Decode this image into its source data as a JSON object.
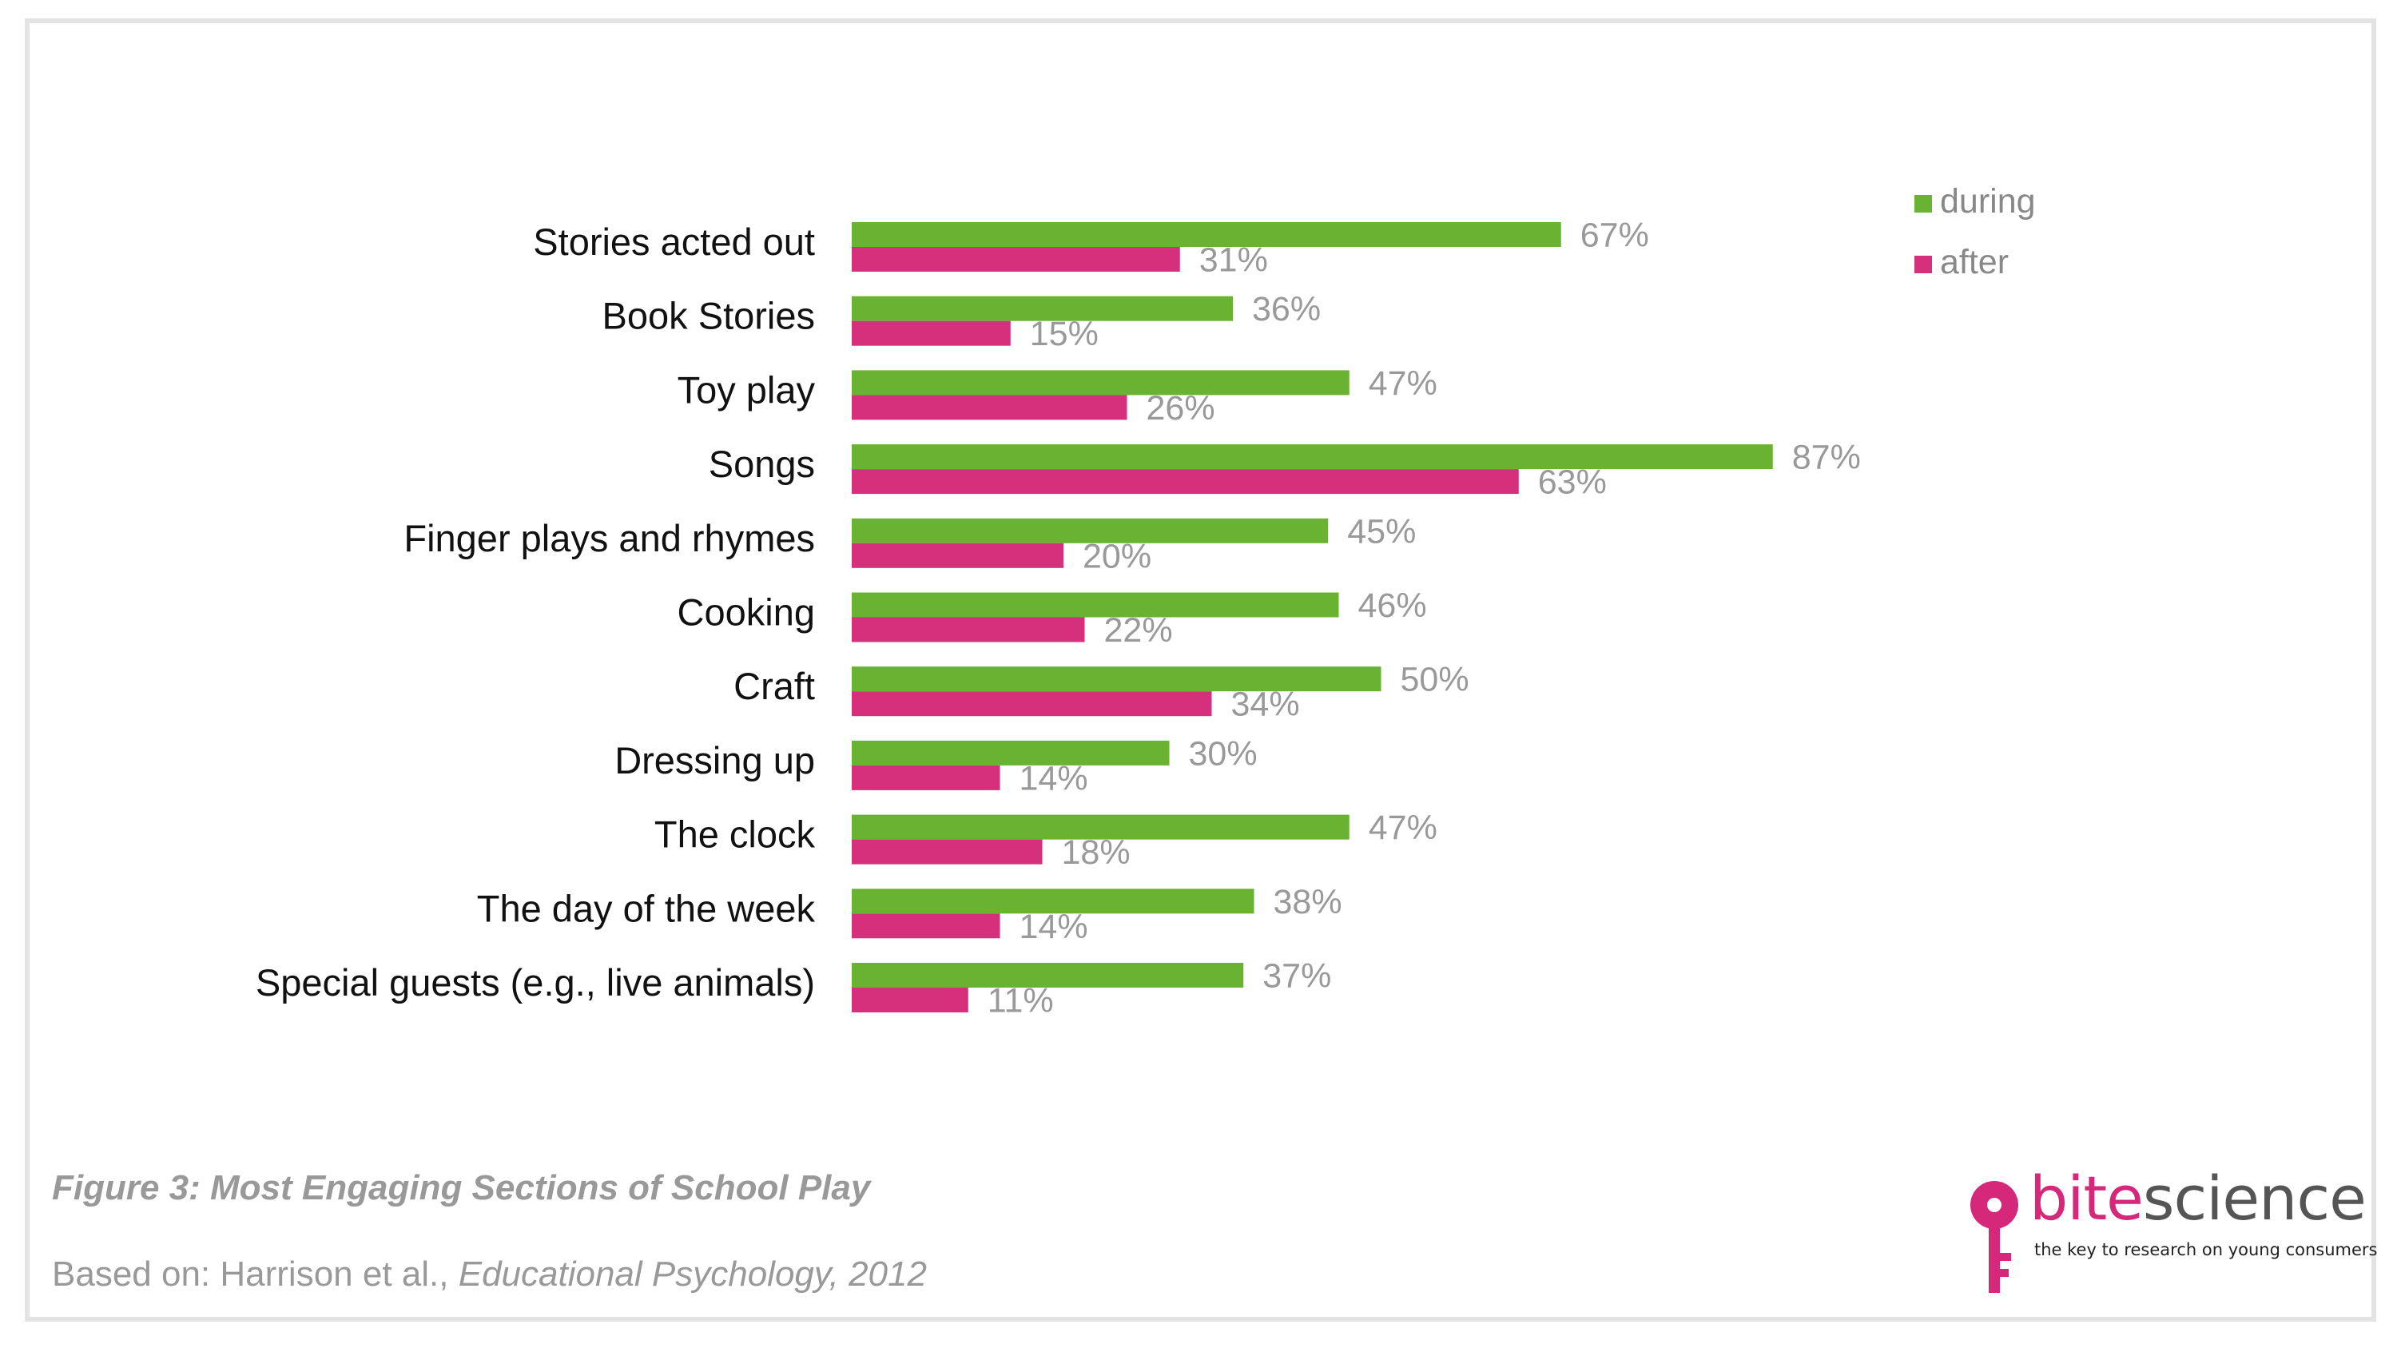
{
  "chart_data": {
    "type": "bar",
    "orientation": "horizontal",
    "categories": [
      "Stories acted out",
      "Book Stories",
      "Toy play",
      "Songs",
      "Finger plays and rhymes",
      "Cooking",
      "Craft",
      "Dressing up",
      "The clock",
      "The day of the week",
      "Special guests (e.g., live animals)"
    ],
    "series": [
      {
        "name": "during",
        "values": [
          67,
          36,
          47,
          87,
          45,
          46,
          50,
          30,
          47,
          38,
          37
        ],
        "labels": [
          "67%",
          "36%",
          "47%",
          "87%",
          "45%",
          "46%",
          "50%",
          "30%",
          "47%",
          "38%",
          "37%"
        ]
      },
      {
        "name": "after",
        "values": [
          31,
          15,
          26,
          63,
          20,
          22,
          34,
          14,
          18,
          14,
          11
        ],
        "labels": [
          "31%",
          "15%",
          "26%",
          "63%",
          "20%",
          "22%",
          "34%",
          "14%",
          "18%",
          "14%",
          "11%"
        ]
      }
    ],
    "unit": "%",
    "legend_position": "top-right",
    "grid": false,
    "xlim": [
      0,
      100
    ],
    "colors": {
      "during": "#6ab232",
      "after": "#d62f7b"
    }
  },
  "caption": {
    "title": "Figure 3: Most Engaging Sections of School Play",
    "source_prefix": "Based on: Harrison et al., ",
    "source_journal": "Educational Psychology, 2012"
  },
  "logo": {
    "brand_part1": "bite",
    "brand_part2": "science",
    "tagline": "the key to research on young consumers",
    "icon": "key-icon"
  }
}
